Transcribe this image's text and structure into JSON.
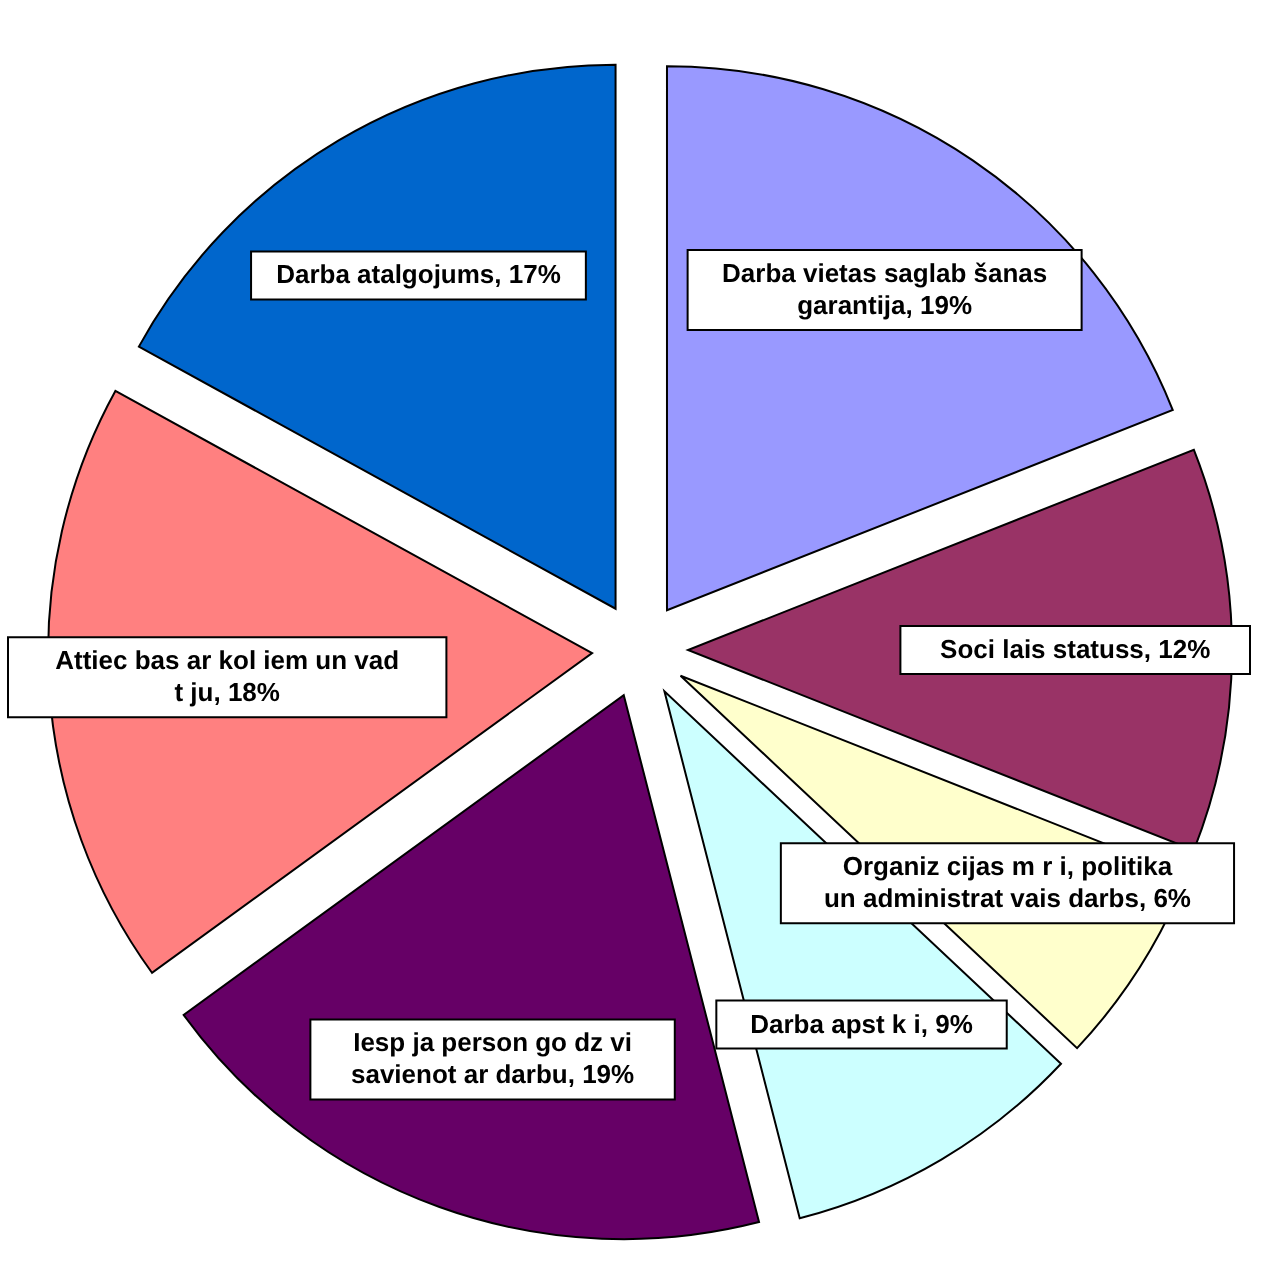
{
  "chart_data": {
    "type": "pie",
    "categories": [
      "Darba vietas saglab šanas garantija",
      "Soci lais statuss",
      "Organiz cijas m r i, politika un administrat vais darbs",
      "Darba apst k i",
      "Iesp ja person go dz vi savienot ar darbu",
      "Attiec bas ar kol iem un vad t ju",
      "Darba atalgojums"
    ],
    "values": [
      19,
      12,
      6,
      9,
      19,
      18,
      17
    ],
    "value_labels": [
      "19%",
      "12%",
      "6%",
      "9%",
      "19%",
      "18%",
      "17%"
    ],
    "colors": [
      "#9999ff",
      "#993366",
      "#ffffcc",
      "#ccffff",
      "#660066",
      "#ff8080",
      "#0066cc"
    ]
  }
}
